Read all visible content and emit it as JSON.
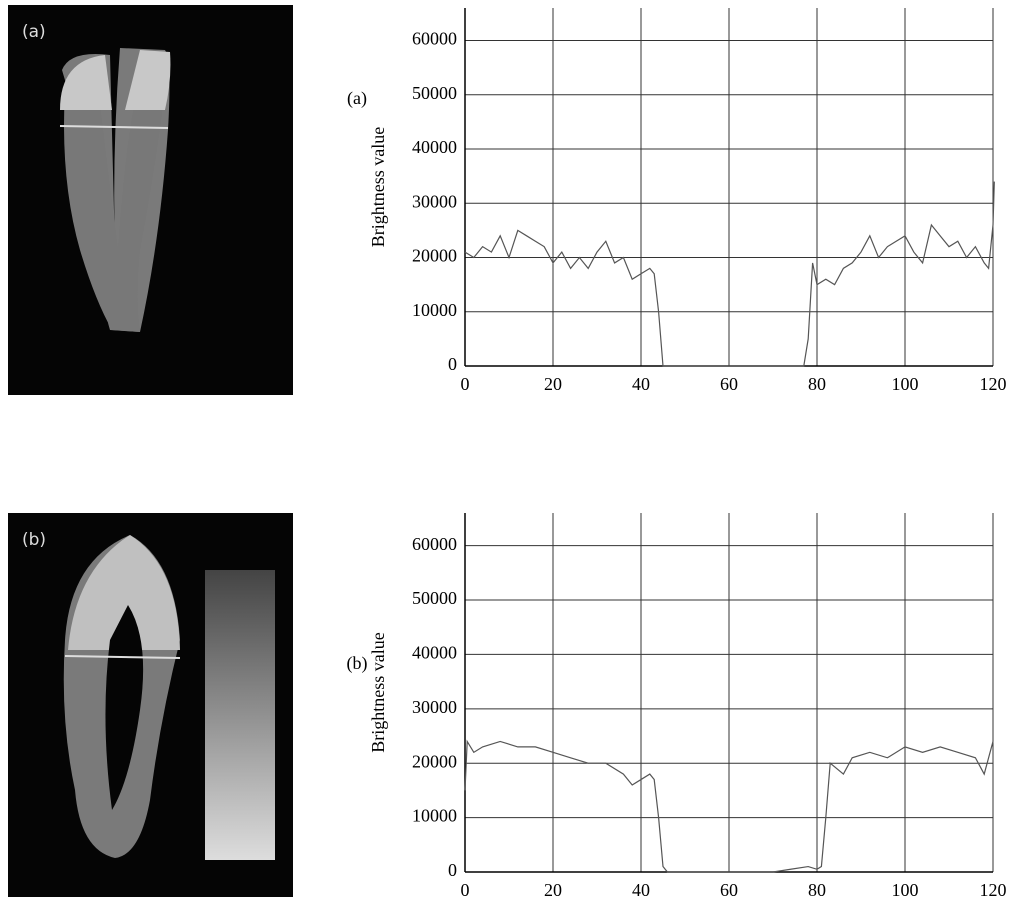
{
  "images": [
    {
      "label": "(a)"
    },
    {
      "label": "(b)"
    }
  ],
  "chart_data": [
    {
      "type": "line",
      "label": "(a)",
      "ylabel": "Brightness value",
      "xlim": [
        0,
        120
      ],
      "xticks": [
        0,
        20,
        40,
        60,
        80,
        100,
        120
      ],
      "ylim": [
        0,
        66000
      ],
      "yticks": [
        0,
        10000,
        20000,
        30000,
        40000,
        50000,
        60000
      ],
      "grid": true,
      "series": [
        {
          "color": "#555555",
          "x": [
            0,
            2,
            4,
            6,
            8,
            10,
            12,
            14,
            16,
            18,
            20,
            22,
            24,
            26,
            28,
            30,
            32,
            34,
            36,
            38,
            40,
            42,
            43,
            44,
            45,
            50,
            60,
            70,
            77,
            78,
            79,
            80,
            82,
            84,
            86,
            88,
            90,
            92,
            94,
            96,
            98,
            100,
            102,
            104,
            106,
            108,
            110,
            112,
            114,
            116,
            118,
            119,
            120,
            120.3
          ],
          "values": [
            21000,
            20000,
            22000,
            21000,
            24000,
            20000,
            25000,
            24000,
            23000,
            22000,
            19000,
            21000,
            18000,
            20000,
            18000,
            21000,
            23000,
            19000,
            20000,
            16000,
            17000,
            18000,
            17000,
            10000,
            0,
            0,
            0,
            0,
            0,
            5000,
            19000,
            15000,
            16000,
            15000,
            18000,
            19000,
            21000,
            24000,
            20000,
            22000,
            23000,
            24000,
            21000,
            19000,
            26000,
            24000,
            22000,
            23000,
            20000,
            22000,
            19000,
            18000,
            26000,
            34000
          ]
        }
      ]
    },
    {
      "type": "line",
      "label": "(b)",
      "ylabel": "Brightness value",
      "xlim": [
        0,
        120
      ],
      "xticks": [
        0,
        20,
        40,
        60,
        80,
        100,
        120
      ],
      "ylim": [
        0,
        66000
      ],
      "yticks": [
        0,
        10000,
        20000,
        30000,
        40000,
        50000,
        60000
      ],
      "grid": true,
      "series": [
        {
          "color": "#555555",
          "x": [
            0,
            0.5,
            2,
            4,
            8,
            12,
            16,
            20,
            24,
            28,
            32,
            36,
            38,
            42,
            43,
            44,
            45,
            46,
            60,
            70,
            74,
            78,
            80,
            81,
            82,
            83,
            86,
            88,
            92,
            96,
            100,
            104,
            108,
            112,
            116,
            118,
            120
          ],
          "values": [
            15000,
            24000,
            22000,
            23000,
            24000,
            23000,
            23000,
            22000,
            21000,
            20000,
            20000,
            18000,
            16000,
            18000,
            17000,
            10000,
            1000,
            0,
            0,
            0,
            500,
            1000,
            500,
            1000,
            10000,
            20000,
            18000,
            21000,
            22000,
            21000,
            23000,
            22000,
            23000,
            22000,
            21000,
            18000,
            24000
          ]
        }
      ]
    }
  ]
}
